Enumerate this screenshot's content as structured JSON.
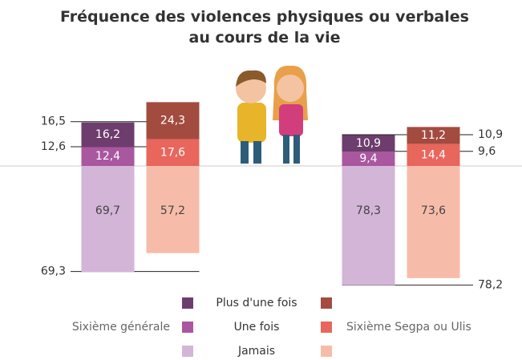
{
  "chart_data": {
    "type": "diverging_stacked_bar",
    "title": "Fréquence des violences physiques ou verbales au cours de la vie",
    "categories": [
      null,
      null
    ],
    "levels": [
      "Plus d'une fois",
      "Une fois",
      "Jamais"
    ],
    "groups": [
      {
        "name": "Sixième générale",
        "colors": [
          "#6d3d6d",
          "#a9579f",
          "#d3b5d8"
        ],
        "values": [
          [
            16.2,
            10.9
          ],
          [
            12.4,
            9.4
          ],
          [
            69.7,
            78.3
          ]
        ],
        "value_labels": [
          [
            "16,2",
            "10,9"
          ],
          [
            "12,4",
            "9,4"
          ],
          [
            "69,7",
            "78,3"
          ]
        ]
      },
      {
        "name": "Sixième Segpa ou Ulis",
        "colors": [
          "#a34b3f",
          "#e8665c",
          "#f7bca9"
        ],
        "values": [
          [
            24.3,
            11.2
          ],
          [
            17.6,
            14.4
          ],
          [
            57.2,
            73.6
          ]
        ],
        "value_labels": [
          [
            "24,3",
            "11,2"
          ],
          [
            "17,6",
            "14,4"
          ],
          [
            "57,2",
            "73,6"
          ]
        ]
      }
    ],
    "reference_values": [
      [
        16.5,
        12.6,
        69.3
      ],
      [
        10.9,
        9.6,
        78.2
      ]
    ],
    "reference_labels": [
      [
        "16,5",
        "12,6",
        "69,3"
      ],
      [
        "10,9",
        "9,6",
        "78,2"
      ]
    ]
  }
}
